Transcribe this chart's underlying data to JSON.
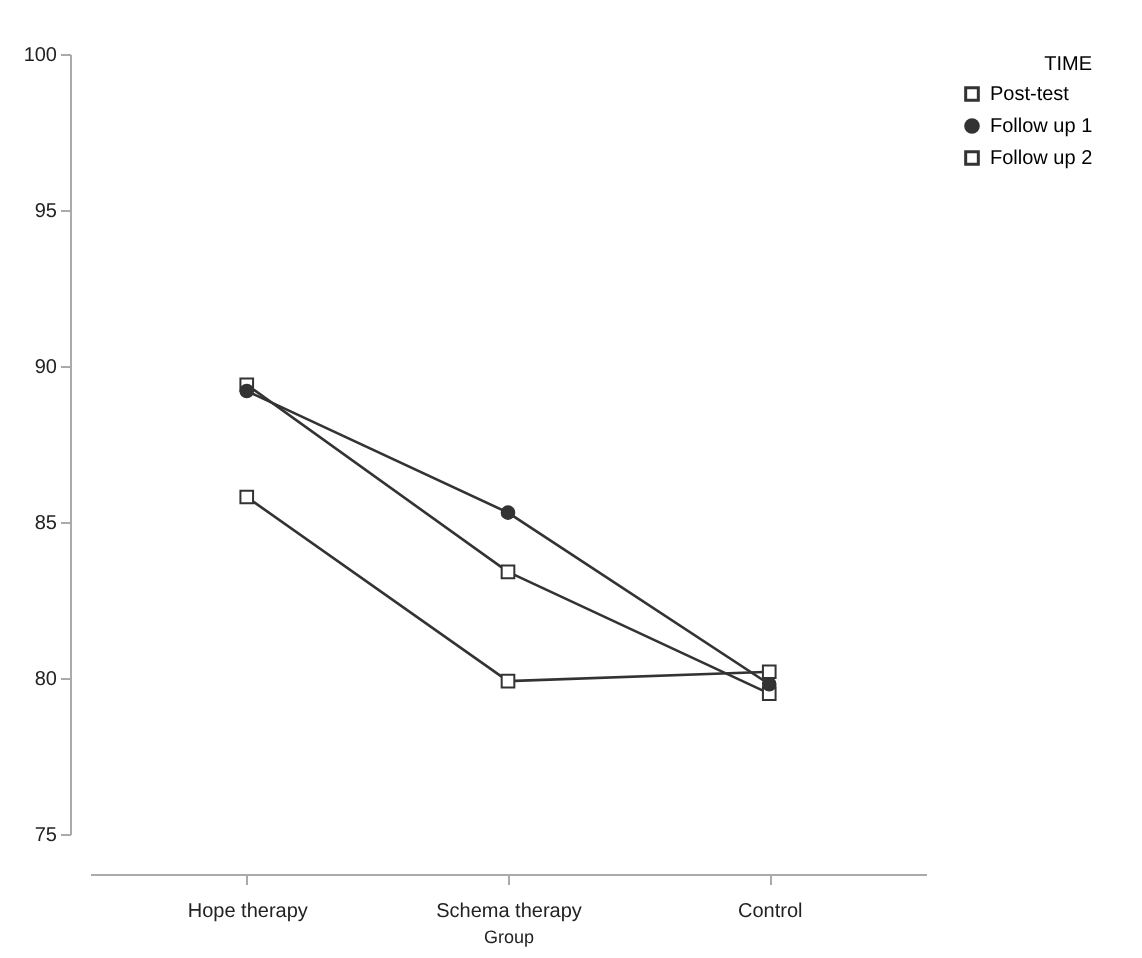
{
  "chart_data": {
    "type": "line",
    "xlabel": "Group",
    "legend_title": "TIME",
    "categories": [
      "Hope therapy",
      "Schema therapy",
      "Control"
    ],
    "series": [
      {
        "name": "Post-test",
        "color": "#333333",
        "marker": "square",
        "values": [
          85.8,
          79.9,
          80.2
        ]
      },
      {
        "name": "Follow up 1",
        "color": "#333333",
        "marker": "circle",
        "values": [
          89.2,
          85.3,
          79.8
        ]
      },
      {
        "name": "Follow up 2",
        "color": "#333333",
        "marker": "square",
        "values": [
          89.4,
          83.4,
          79.5
        ]
      }
    ],
    "ylim": [
      75,
      100
    ],
    "yticks": [
      75,
      80,
      85,
      90,
      95,
      100
    ],
    "grid": false,
    "legend": "top right",
    "line_style": "solid"
  }
}
